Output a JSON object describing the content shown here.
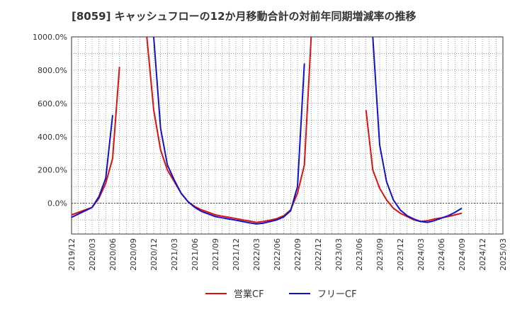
{
  "title": "[8059]  キャッシュフローの12か月移動合計の対前年同期増減率の推移",
  "chart_data": {
    "type": "line",
    "title": "[8059]  キャッシュフローの12か月移動合計の対前年同期増減率の推移",
    "xlabel": "",
    "ylabel": "",
    "ylim": [
      -185,
      1000
    ],
    "y_ticks": [
      "0.0%",
      "200.0%",
      "400.0%",
      "600.0%",
      "800.0%",
      "1000.0%"
    ],
    "y_tick_values": [
      0,
      200,
      400,
      600,
      800,
      1000
    ],
    "x_ticks": [
      "2019/12",
      "2020/03",
      "2020/06",
      "2020/09",
      "2020/12",
      "2021/03",
      "2021/06",
      "2021/09",
      "2021/12",
      "2022/03",
      "2022/06",
      "2022/09",
      "2022/12",
      "2023/03",
      "2023/06",
      "2023/09",
      "2023/12",
      "2024/03",
      "2024/06",
      "2024/09",
      "2024/12",
      "2025/03"
    ],
    "grid": true,
    "legend_position": "bottom-center",
    "series": [
      {
        "name": "営業CF",
        "color": "#dd1111",
        "points": [
          [
            "2019/12",
            -70
          ],
          [
            "2020/01",
            -55
          ],
          [
            "2020/02",
            -40
          ],
          [
            "2020/03",
            -25
          ],
          [
            "2020/04",
            30
          ],
          [
            "2020/05",
            120
          ],
          [
            "2020/06",
            270
          ],
          [
            "2020/07",
            820
          ],
          [
            "2020/08",
            null
          ],
          [
            "2020/10",
            null
          ],
          [
            "2020/11",
            1000
          ],
          [
            "2020/12",
            560
          ],
          [
            "2021/01",
            320
          ],
          [
            "2021/02",
            200
          ],
          [
            "2021/03",
            130
          ],
          [
            "2021/04",
            60
          ],
          [
            "2021/05",
            10
          ],
          [
            "2021/06",
            -20
          ],
          [
            "2021/07",
            -40
          ],
          [
            "2021/08",
            -55
          ],
          [
            "2021/09",
            -70
          ],
          [
            "2021/10",
            -78
          ],
          [
            "2021/11",
            -85
          ],
          [
            "2021/12",
            -92
          ],
          [
            "2022/01",
            -100
          ],
          [
            "2022/02",
            -108
          ],
          [
            "2022/03",
            -115
          ],
          [
            "2022/04",
            -110
          ],
          [
            "2022/05",
            -102
          ],
          [
            "2022/06",
            -92
          ],
          [
            "2022/07",
            -75
          ],
          [
            "2022/08",
            -40
          ],
          [
            "2022/09",
            60
          ],
          [
            "2022/10",
            230
          ],
          [
            "2022/11",
            1000
          ],
          [
            "2022/12",
            null
          ],
          [
            "2023/06",
            null
          ],
          [
            "2023/07",
            560
          ],
          [
            "2023/08",
            200
          ],
          [
            "2023/09",
            90
          ],
          [
            "2023/10",
            20
          ],
          [
            "2023/11",
            -30
          ],
          [
            "2023/12",
            -60
          ],
          [
            "2024/01",
            -80
          ],
          [
            "2024/02",
            -100
          ],
          [
            "2024/03",
            -110
          ],
          [
            "2024/04",
            -105
          ],
          [
            "2024/05",
            -95
          ],
          [
            "2024/06",
            -88
          ],
          [
            "2024/07",
            -80
          ],
          [
            "2024/08",
            -70
          ],
          [
            "2024/09",
            -60
          ]
        ]
      },
      {
        "name": "フリーCF",
        "color": "#1111cc",
        "points": [
          [
            "2019/12",
            -85
          ],
          [
            "2020/01",
            -65
          ],
          [
            "2020/02",
            -45
          ],
          [
            "2020/03",
            -25
          ],
          [
            "2020/04",
            40
          ],
          [
            "2020/05",
            150
          ],
          [
            "2020/06",
            530
          ],
          [
            "2020/07",
            null
          ],
          [
            "2020/11",
            null
          ],
          [
            "2020/12",
            1000
          ],
          [
            "2021/01",
            450
          ],
          [
            "2021/02",
            230
          ],
          [
            "2021/03",
            140
          ],
          [
            "2021/04",
            60
          ],
          [
            "2021/05",
            10
          ],
          [
            "2021/06",
            -25
          ],
          [
            "2021/07",
            -50
          ],
          [
            "2021/08",
            -65
          ],
          [
            "2021/09",
            -80
          ],
          [
            "2021/10",
            -88
          ],
          [
            "2021/11",
            -95
          ],
          [
            "2021/12",
            -102
          ],
          [
            "2022/01",
            -110
          ],
          [
            "2022/02",
            -118
          ],
          [
            "2022/03",
            -125
          ],
          [
            "2022/04",
            -120
          ],
          [
            "2022/05",
            -110
          ],
          [
            "2022/06",
            -100
          ],
          [
            "2022/07",
            -82
          ],
          [
            "2022/08",
            -45
          ],
          [
            "2022/09",
            100
          ],
          [
            "2022/10",
            840
          ],
          [
            "2022/11",
            null
          ],
          [
            "2023/07",
            null
          ],
          [
            "2023/08",
            1000
          ],
          [
            "2023/09",
            350
          ],
          [
            "2023/10",
            130
          ],
          [
            "2023/11",
            20
          ],
          [
            "2023/12",
            -40
          ],
          [
            "2024/01",
            -75
          ],
          [
            "2024/02",
            -95
          ],
          [
            "2024/03",
            -110
          ],
          [
            "2024/04",
            -115
          ],
          [
            "2024/05",
            -105
          ],
          [
            "2024/06",
            -90
          ],
          [
            "2024/07",
            -75
          ],
          [
            "2024/08",
            -55
          ],
          [
            "2024/09",
            -30
          ]
        ]
      }
    ]
  },
  "legend": {
    "items": [
      {
        "label": "営業CF",
        "color": "#dd1111"
      },
      {
        "label": "フリーCF",
        "color": "#1111cc"
      }
    ]
  }
}
